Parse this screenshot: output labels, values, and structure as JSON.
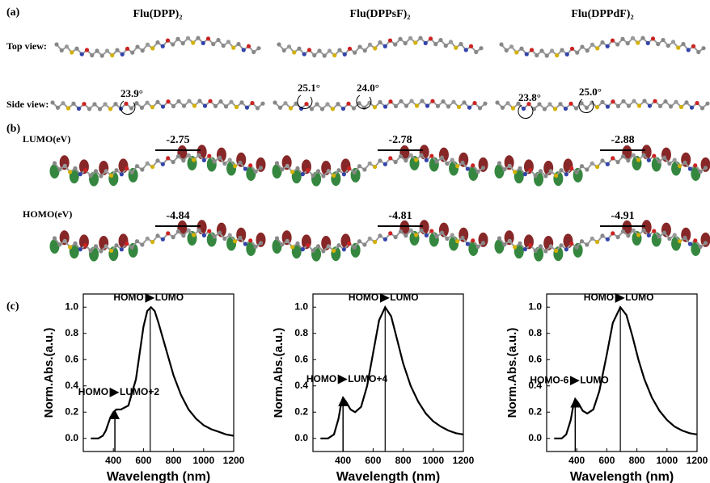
{
  "panel_a": {
    "label": "(a)",
    "titles": [
      "Flu(DPP)₂",
      "Flu(DPPsF)₂",
      "Flu(DPPdF)₂"
    ],
    "row_labels": [
      "Top view:",
      "Side view:"
    ],
    "angles": [
      [
        "23.9°"
      ],
      [
        "25.1°",
        "24.0°"
      ],
      [
        "23.8°",
        "25.0°"
      ]
    ]
  },
  "panel_b": {
    "label": "(b)",
    "lumo_label": "LUMO(eV)",
    "homo_label": "HOMO(eV)",
    "lumo": [
      -2.75,
      -2.78,
      -2.88
    ],
    "homo": [
      -4.84,
      -4.81,
      -4.91
    ]
  },
  "panel_c": {
    "label": "(c)"
  },
  "chart_data": [
    {
      "type": "line",
      "xlabel": "Wavelength (nm)",
      "ylabel": "Norm.Abs.(a.u.)",
      "x": [
        250,
        300,
        330,
        350,
        380,
        400,
        420,
        450,
        500,
        550,
        600,
        625,
        650,
        675,
        700,
        750,
        800,
        850,
        900,
        950,
        1000,
        1050,
        1100,
        1150,
        1200
      ],
      "series": [
        {
          "color": "#000000",
          "values": [
            0,
            0,
            0.02,
            0.06,
            0.16,
            0.2,
            0.22,
            0.22,
            0.25,
            0.45,
            0.85,
            0.97,
            1.0,
            0.97,
            0.88,
            0.68,
            0.48,
            0.33,
            0.22,
            0.15,
            0.1,
            0.07,
            0.05,
            0.03,
            0.02
          ]
        }
      ],
      "xlim": [
        200,
        1200
      ],
      "xticks": [
        400,
        600,
        800,
        1000,
        1200
      ],
      "ylim": [
        -0.1,
        1.1
      ],
      "yticks": [
        {
          "value": 0,
          "label": "0.0"
        },
        {
          "value": 0.2,
          "label": "0.2"
        },
        {
          "value": 0.4,
          "label": "0.4"
        },
        {
          "value": 0.6,
          "label": "0.6"
        },
        {
          "value": 0.8,
          "label": "0.8"
        },
        {
          "value": 1,
          "label": "1.0"
        }
      ],
      "transitions": [
        {
          "x": 410,
          "value": 0.21,
          "from": "HOMO",
          "to": "LUMO+2"
        },
        {
          "x": 645,
          "value": 1.0,
          "from": "HOMO",
          "to": "LUMO"
        }
      ]
    },
    {
      "type": "line",
      "xlabel": "Wavelength (nm)",
      "ylabel": "Norm.Abs.(a.u.)",
      "x": [
        250,
        300,
        340,
        370,
        390,
        400,
        420,
        450,
        480,
        520,
        560,
        600,
        640,
        680,
        720,
        760,
        800,
        850,
        900,
        950,
        1000,
        1050,
        1100,
        1150,
        1200
      ],
      "series": [
        {
          "color": "#000000",
          "values": [
            0,
            0,
            0.03,
            0.15,
            0.28,
            0.31,
            0.28,
            0.22,
            0.2,
            0.24,
            0.4,
            0.65,
            0.9,
            1.0,
            0.93,
            0.75,
            0.57,
            0.4,
            0.28,
            0.19,
            0.13,
            0.09,
            0.06,
            0.04,
            0.03
          ]
        }
      ],
      "xlim": [
        200,
        1200
      ],
      "xticks": [
        400,
        600,
        800,
        1000,
        1200
      ],
      "ylim": [
        -0.1,
        1.1
      ],
      "yticks": [
        {
          "value": 0,
          "label": "0.0"
        },
        {
          "value": 0.2,
          "label": "0.2"
        },
        {
          "value": 0.4,
          "label": "0.4"
        },
        {
          "value": 0.6,
          "label": "0.6"
        },
        {
          "value": 0.8,
          "label": "0.8"
        },
        {
          "value": 1,
          "label": "1.0"
        }
      ],
      "transitions": [
        {
          "x": 400,
          "value": 0.31,
          "from": "HOMO",
          "to": "LUMO+4"
        },
        {
          "x": 680,
          "value": 1.0,
          "from": "HOMO",
          "to": "LUMO"
        }
      ]
    },
    {
      "type": "line",
      "xlabel": "Wavelength (nm)",
      "ylabel": "Norm.Abs.(a.u.)",
      "x": [
        250,
        300,
        330,
        360,
        380,
        390,
        410,
        440,
        470,
        510,
        550,
        600,
        640,
        690,
        730,
        770,
        810,
        850,
        900,
        950,
        1000,
        1050,
        1100,
        1150,
        1200
      ],
      "series": [
        {
          "color": "#000000",
          "values": [
            0,
            0,
            0.03,
            0.14,
            0.27,
            0.3,
            0.27,
            0.21,
            0.19,
            0.22,
            0.36,
            0.64,
            0.88,
            1.0,
            0.94,
            0.78,
            0.6,
            0.45,
            0.31,
            0.21,
            0.14,
            0.09,
            0.06,
            0.04,
            0.03
          ]
        }
      ],
      "xlim": [
        200,
        1200
      ],
      "xticks": [
        400,
        600,
        800,
        1000,
        1200
      ],
      "ylim": [
        -0.1,
        1.1
      ],
      "yticks": [
        {
          "value": 0,
          "label": "0.0"
        },
        {
          "value": 0.2,
          "label": "0.2"
        },
        {
          "value": 0.4,
          "label": "0.4"
        },
        {
          "value": 0.6,
          "label": "0.6"
        },
        {
          "value": 0.8,
          "label": "0.8"
        },
        {
          "value": 1,
          "label": "1.0"
        }
      ],
      "transitions": [
        {
          "x": 390,
          "value": 0.3,
          "from": "HOMO-6",
          "to": "LUMO"
        },
        {
          "x": 690,
          "value": 1.0,
          "from": "HOMO",
          "to": "LUMO"
        }
      ]
    }
  ]
}
